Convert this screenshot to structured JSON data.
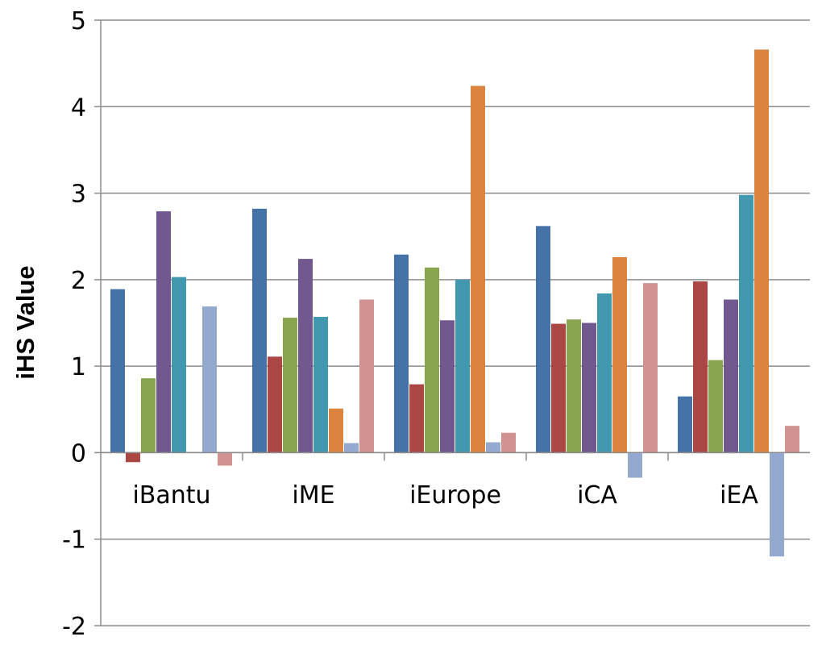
{
  "chart_data": {
    "type": "bar",
    "title": "",
    "xlabel": "",
    "ylabel": "iHS Value",
    "ylim": [
      -2,
      5
    ],
    "yticks": [
      "-2",
      "-1",
      "0",
      "1",
      "2",
      "3",
      "4",
      "5"
    ],
    "grid": true,
    "legend": "none",
    "categories": [
      "iBantu",
      "iME",
      "iEurope",
      "iCA",
      "iEA"
    ],
    "series": [
      {
        "color": "#4572a7",
        "values": [
          1.89,
          2.82,
          2.29,
          2.62,
          0.65
        ]
      },
      {
        "color": "#aa4643",
        "values": [
          -0.11,
          1.11,
          0.79,
          1.49,
          1.98
        ]
      },
      {
        "color": "#89a54e",
        "values": [
          0.86,
          1.56,
          2.14,
          1.54,
          1.07
        ]
      },
      {
        "color": "#71588f",
        "values": [
          2.79,
          2.24,
          1.53,
          1.5,
          1.77
        ]
      },
      {
        "color": "#4198af",
        "values": [
          2.03,
          1.57,
          2.0,
          1.84,
          2.98
        ]
      },
      {
        "color": "#db843d",
        "values": [
          0.0,
          0.51,
          4.24,
          2.26,
          4.66
        ]
      },
      {
        "color": "#93a9cf",
        "values": [
          1.69,
          0.11,
          0.12,
          -0.29,
          -1.2
        ]
      },
      {
        "color": "#d19392",
        "values": [
          -0.15,
          1.77,
          0.23,
          1.96,
          0.31
        ]
      }
    ]
  }
}
